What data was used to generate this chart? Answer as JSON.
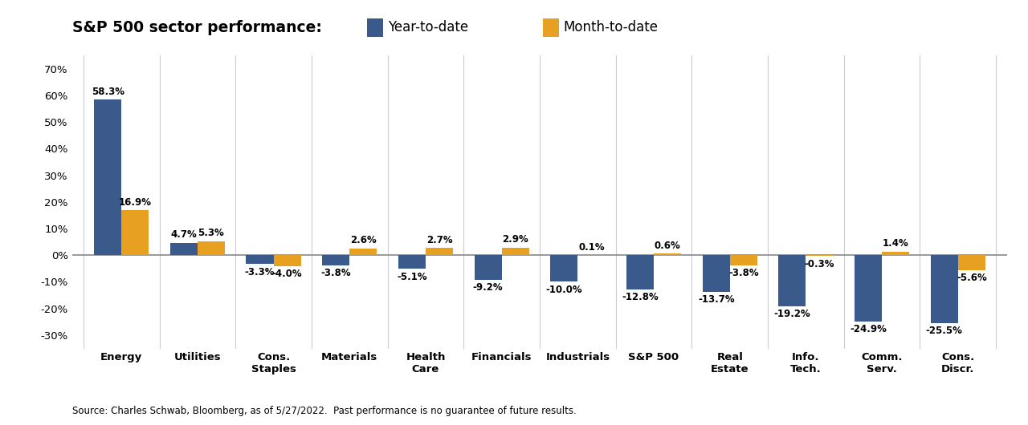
{
  "title": "S&P 500 sector performance:",
  "categories": [
    "Energy",
    "Utilities",
    "Cons.\nStaples",
    "Materials",
    "Health\nCare",
    "Financials",
    "Industrials",
    "S&P 500",
    "Real\nEstate",
    "Info.\nTech.",
    "Comm.\nServ.",
    "Cons.\nDiscr."
  ],
  "ytd_values": [
    58.3,
    4.7,
    -3.3,
    -3.8,
    -5.1,
    -9.2,
    -10.0,
    -12.8,
    -13.7,
    -19.2,
    -24.9,
    -25.5
  ],
  "mtd_values": [
    16.9,
    5.3,
    -4.0,
    2.6,
    2.7,
    2.9,
    0.1,
    0.6,
    -3.8,
    -0.3,
    1.4,
    -5.6
  ],
  "ytd_color": "#3A5A8C",
  "mtd_color": "#E8A020",
  "ytd_label": "Year-to-date",
  "mtd_label": "Month-to-date",
  "ylabel_ticks": [
    "-30%",
    "-20%",
    "-10%",
    "0%",
    "10%",
    "20%",
    "30%",
    "40%",
    "50%",
    "60%",
    "70%"
  ],
  "ytick_values": [
    -30,
    -20,
    -10,
    0,
    10,
    20,
    30,
    40,
    50,
    60,
    70
  ],
  "ylim": [
    -35,
    75
  ],
  "source_text": "Source: Charles Schwab, Bloomberg, as of 5/27/2022.  Past performance is no guarantee of future results.",
  "background_color": "#FFFFFF",
  "bar_width": 0.36,
  "label_fontsize": 8.5,
  "tick_fontsize": 9.5,
  "title_fontsize": 13.5,
  "legend_fontsize": 12,
  "source_fontsize": 8.5
}
